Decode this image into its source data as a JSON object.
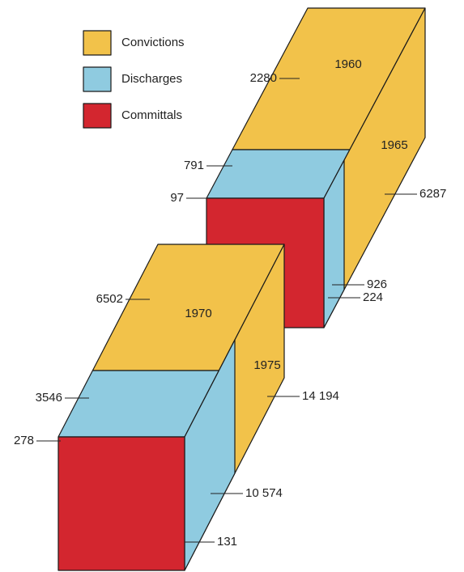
{
  "legend": [
    {
      "label": "Convictions",
      "color": "#f2c24a"
    },
    {
      "label": "Discharges",
      "color": "#8fcbe0"
    },
    {
      "label": "Committals",
      "color": "#d3262f"
    }
  ],
  "blocks": [
    {
      "years": [
        "1960",
        "1965"
      ],
      "labels": [
        "2280",
        "791",
        "97",
        "6287",
        "926",
        "224"
      ]
    },
    {
      "years": [
        "1970",
        "1975"
      ],
      "labels": [
        "6502",
        "3546",
        "278",
        "14 194",
        "10 574",
        "131"
      ]
    }
  ]
}
